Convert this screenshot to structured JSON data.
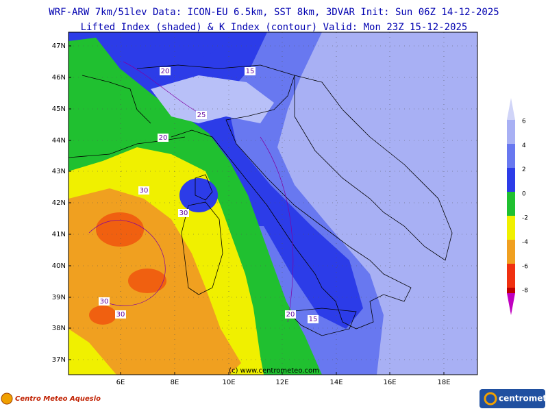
{
  "header": {
    "line1": "WRF-ARW 7km/51lev  Data: ICON-EU 6.5km, SST 8km, 3DVAR  Init: Sun 06Z 14-12-2025",
    "line2": "Lifted Index (shaded) & K Index (contour)  Valid: Mon 23Z 15-12-2025"
  },
  "axes": {
    "lat_labels": [
      "47N",
      "46N",
      "45N",
      "44N",
      "43N",
      "42N",
      "41N",
      "40N",
      "39N",
      "38N",
      "37N"
    ],
    "lon_labels": [
      "6E",
      "8E",
      "10E",
      "12E",
      "14E",
      "16E",
      "18E"
    ]
  },
  "legend": {
    "labels": [
      "6",
      "4",
      "2",
      "0",
      "-2",
      "-4",
      "-6",
      "-8"
    ]
  },
  "contour_labels": [
    "20",
    "15",
    "25",
    "20",
    "30",
    "30",
    "30",
    "30",
    "20",
    "15"
  ],
  "watermark": "(c) www.centrometeo.com",
  "footer": {
    "left": "Centro Meteo Aquesio",
    "right": "centrometeo"
  }
}
